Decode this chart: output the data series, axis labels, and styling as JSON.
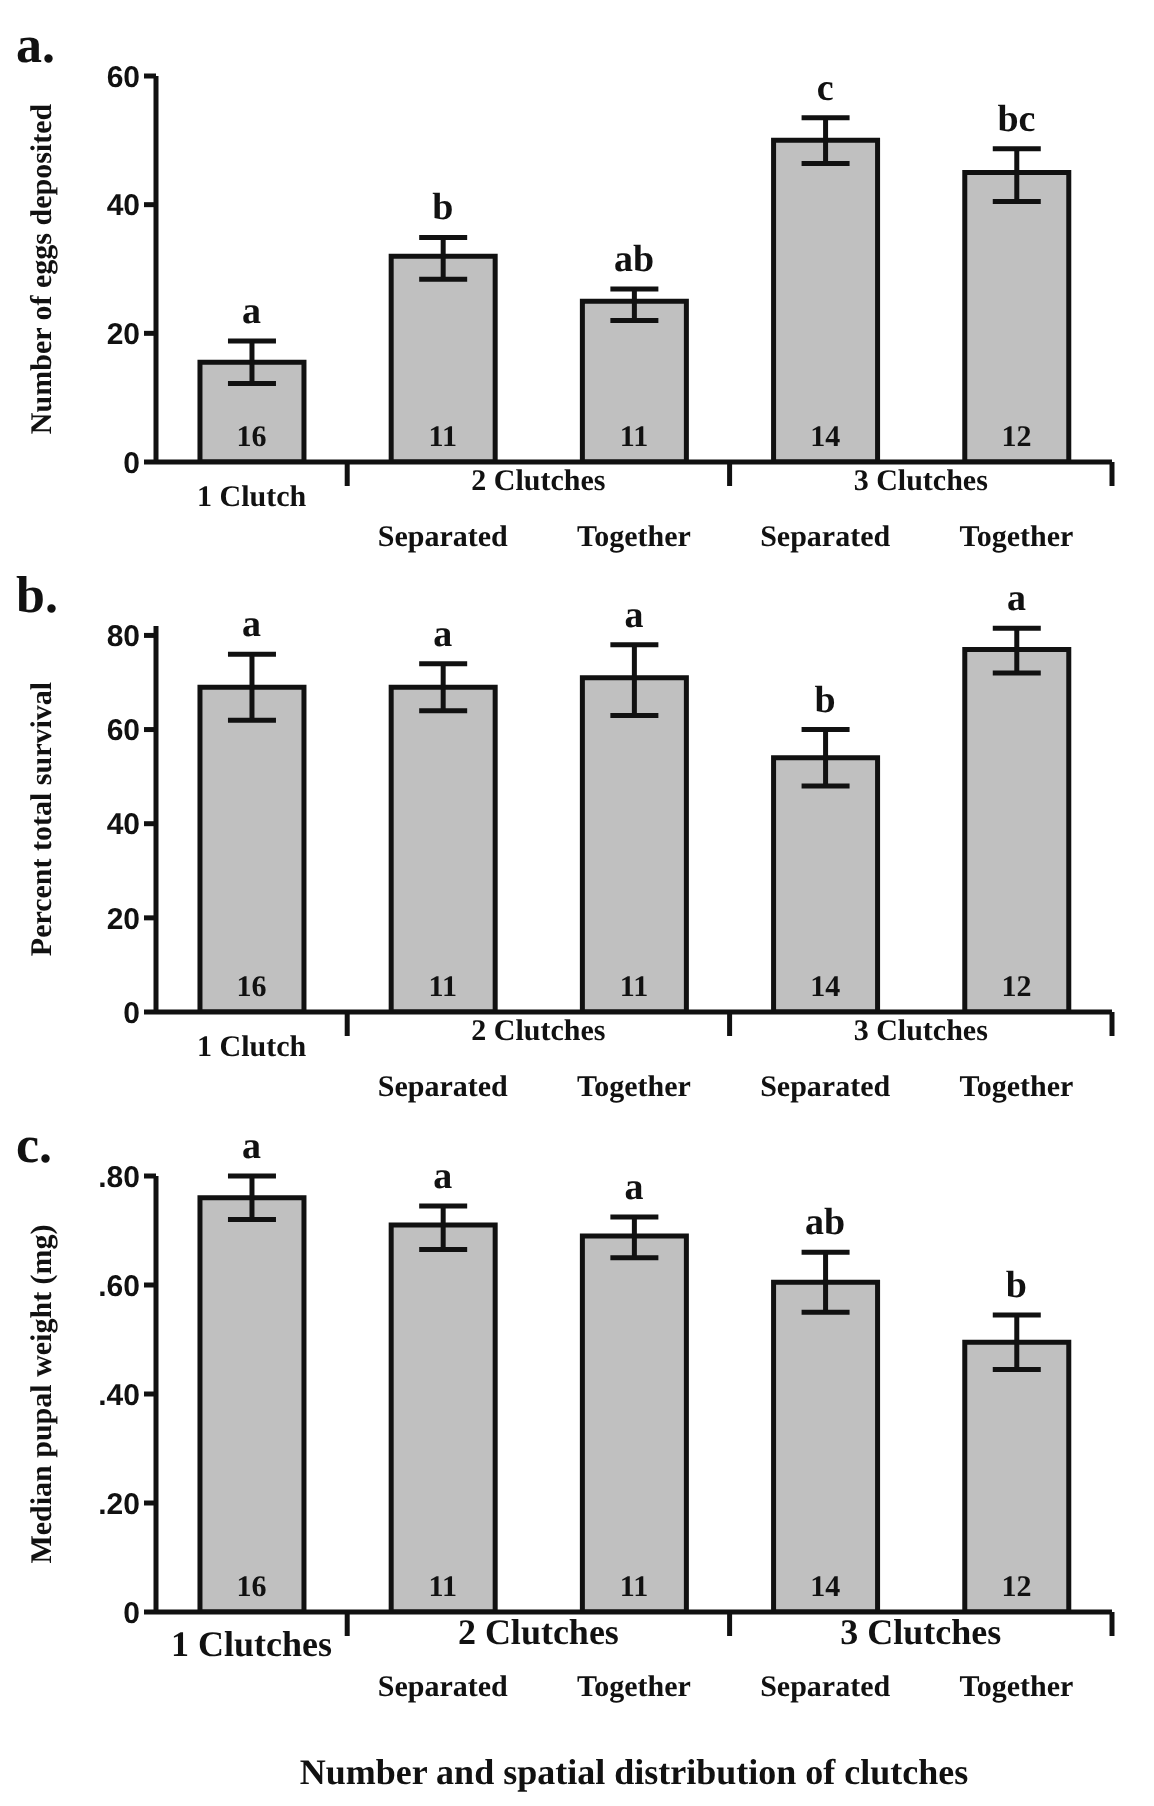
{
  "chart_data": [
    {
      "type": "bar",
      "title": "a.",
      "ylabel": "Number of eggs deposited",
      "categories": [
        "1 Clutch",
        "Separated",
        "Together",
        "Separated",
        "Together"
      ],
      "values": [
        15.5,
        32,
        25,
        50,
        45
      ],
      "color": "#c0c0c0",
      "errors": [
        [
          12.2,
          18.8
        ],
        [
          28.4,
          34.9
        ],
        [
          22,
          26.9
        ],
        [
          46.4,
          53.5
        ],
        [
          40.5,
          48.7
        ]
      ],
      "ylim": [
        0,
        60
      ],
      "yticks": [
        0,
        20,
        40,
        60
      ],
      "annotations": [
        "a",
        "b",
        "ab",
        "c",
        "bc",
        "16",
        "11",
        "11",
        "14",
        "12",
        "2 Clutches",
        "3 Clutches"
      ]
    },
    {
      "type": "bar",
      "title": "b.",
      "ylabel": "Percent total survival",
      "categories": [
        "1 Clutch",
        "Separated",
        "Together",
        "Separated",
        "Together"
      ],
      "values": [
        69,
        69,
        71,
        54,
        77
      ],
      "color": "#c0c0c0",
      "errors": [
        [
          62,
          76
        ],
        [
          64,
          74
        ],
        [
          63,
          78
        ],
        [
          48,
          60
        ],
        [
          72,
          81.5
        ]
      ],
      "ylim": [
        0,
        82
      ],
      "yticks": [
        0,
        20,
        40,
        60,
        80
      ],
      "annotations": [
        "a",
        "a",
        "a",
        "b",
        "a",
        "16",
        "11",
        "11",
        "14",
        "12",
        "2 Clutches",
        "3 Clutches"
      ]
    },
    {
      "type": "bar",
      "title": "c.",
      "ylabel": "Median pupal weight (mg)",
      "xlabel": "Number and spatial distribution of clutches",
      "categories": [
        "1 Clutches",
        "Separated",
        "Together",
        "Separated",
        "Together"
      ],
      "values": [
        0.76,
        0.71,
        0.69,
        0.605,
        0.495
      ],
      "color": "#c0c0c0",
      "errors": [
        [
          0.72,
          0.8
        ],
        [
          0.665,
          0.745
        ],
        [
          0.65,
          0.725
        ],
        [
          0.55,
          0.66
        ],
        [
          0.445,
          0.545
        ]
      ],
      "ylim": [
        0,
        0.8
      ],
      "yticks": [
        {
          "value": 0,
          "label": "0"
        },
        {
          "value": 0.2,
          "label": ".20"
        },
        {
          "value": 0.4,
          "label": ".40"
        },
        {
          "value": 0.6,
          "label": ".60"
        },
        {
          "value": 0.8,
          "label": ".80"
        }
      ],
      "annotations": [
        "a",
        "a",
        "a",
        "ab",
        "b",
        "16",
        "11",
        "11",
        "14",
        "12",
        "2 Clutches",
        "3 Clutches"
      ]
    }
  ]
}
